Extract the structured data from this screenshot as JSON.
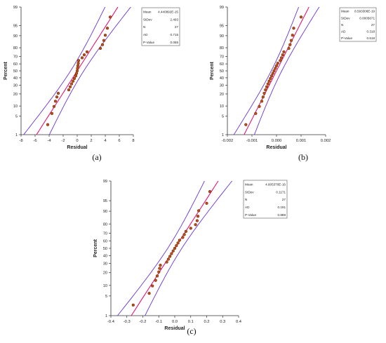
{
  "figure": {
    "panel_labels": [
      "(a)",
      "(b)",
      "(c)"
    ]
  },
  "chart_data": [
    {
      "type": "scatter",
      "panel": "(a)",
      "xlabel": "Residual",
      "ylabel": "Percent",
      "xlim": [
        -8,
        8
      ],
      "xticks": [
        "-8",
        "-6",
        "-4",
        "-2",
        "0",
        "2",
        "4",
        "6",
        "8"
      ],
      "ylim_percent": [
        1,
        99
      ],
      "yticks": [
        "1",
        "5",
        "10",
        "20",
        "30",
        "40",
        "50",
        "60",
        "70",
        "80",
        "90",
        "95",
        "99"
      ],
      "stats": {
        "labels": [
          "Mean",
          "StDev",
          "N",
          "AD",
          "P-Value"
        ],
        "values": [
          "4.440892E-15",
          "2.493",
          "27",
          "0.715",
          "0.055"
        ]
      },
      "points": [
        {
          "x": -4.2,
          "y": 2.5
        },
        {
          "x": -3.6,
          "y": 6
        },
        {
          "x": -3.3,
          "y": 9.7
        },
        {
          "x": -3.1,
          "y": 13.4
        },
        {
          "x": -2.9,
          "y": 17
        },
        {
          "x": -2.7,
          "y": 20.7
        },
        {
          "x": -1.2,
          "y": 24.4
        },
        {
          "x": -1.0,
          "y": 28
        },
        {
          "x": -0.8,
          "y": 31.7
        },
        {
          "x": -0.6,
          "y": 35.4
        },
        {
          "x": -0.4,
          "y": 39
        },
        {
          "x": -0.2,
          "y": 42.7
        },
        {
          "x": -0.1,
          "y": 46.3
        },
        {
          "x": 0.0,
          "y": 50
        },
        {
          "x": 0.05,
          "y": 53.7
        },
        {
          "x": 0.1,
          "y": 57.3
        },
        {
          "x": 0.15,
          "y": 61
        },
        {
          "x": 0.2,
          "y": 64.6
        },
        {
          "x": 0.7,
          "y": 68.3
        },
        {
          "x": 1.0,
          "y": 72
        },
        {
          "x": 1.4,
          "y": 75.6
        },
        {
          "x": 3.3,
          "y": 79.3
        },
        {
          "x": 3.6,
          "y": 83
        },
        {
          "x": 3.8,
          "y": 86.6
        },
        {
          "x": 4.0,
          "y": 90.3
        },
        {
          "x": 4.3,
          "y": 94
        },
        {
          "x": 4.7,
          "y": 97.5
        }
      ]
    },
    {
      "type": "scatter",
      "panel": "(b)",
      "xlabel": "Residual",
      "ylabel": "Percent",
      "xlim": [
        -0.002,
        0.002
      ],
      "xticks": [
        "-0.002",
        "-0.001",
        "0.000",
        "0.001",
        "0.002"
      ],
      "ylim_percent": [
        1,
        99
      ],
      "yticks": [
        "1",
        "5",
        "10",
        "20",
        "30",
        "40",
        "50",
        "60",
        "70",
        "80",
        "90",
        "95",
        "99"
      ],
      "stats": {
        "labels": [
          "Mean",
          "StDev",
          "N",
          "AD",
          "P-Value"
        ],
        "values": [
          "8.593306E-19",
          "0.0005671",
          "27",
          "0.318",
          "0.518"
        ]
      },
      "points": [
        {
          "x": -0.00125,
          "y": 2.5
        },
        {
          "x": -0.00085,
          "y": 6
        },
        {
          "x": -0.0007,
          "y": 9.7
        },
        {
          "x": -0.0006,
          "y": 13.4
        },
        {
          "x": -0.00055,
          "y": 17
        },
        {
          "x": -0.0005,
          "y": 20.7
        },
        {
          "x": -0.00045,
          "y": 24.4
        },
        {
          "x": -0.0004,
          "y": 28
        },
        {
          "x": -0.00035,
          "y": 31.7
        },
        {
          "x": -0.0003,
          "y": 35.4
        },
        {
          "x": -0.00025,
          "y": 39
        },
        {
          "x": -0.0002,
          "y": 42.7
        },
        {
          "x": -0.00015,
          "y": 46.3
        },
        {
          "x": -0.0001,
          "y": 50
        },
        {
          "x": -5e-05,
          "y": 53.7
        },
        {
          "x": 0.0,
          "y": 57.3
        },
        {
          "x": 5e-05,
          "y": 61
        },
        {
          "x": 0.00015,
          "y": 64.6
        },
        {
          "x": 0.0002,
          "y": 68.3
        },
        {
          "x": 0.00025,
          "y": 72
        },
        {
          "x": 0.0003,
          "y": 75.6
        },
        {
          "x": 0.0005,
          "y": 79.3
        },
        {
          "x": 0.00055,
          "y": 83
        },
        {
          "x": 0.0006,
          "y": 86.6
        },
        {
          "x": 0.00065,
          "y": 90.3
        },
        {
          "x": 0.0007,
          "y": 94
        },
        {
          "x": 0.001,
          "y": 97.5
        }
      ]
    },
    {
      "type": "scatter",
      "panel": "(c)",
      "xlabel": "Residual",
      "ylabel": "Percent",
      "xlim": [
        -0.4,
        0.4
      ],
      "xticks": [
        "-0.4",
        "-0.3",
        "-0.2",
        "-0.1",
        "0.0",
        "0.1",
        "0.2",
        "0.3",
        "0.4"
      ],
      "ylim_percent": [
        1,
        99
      ],
      "yticks": [
        "1",
        "5",
        "10",
        "20",
        "30",
        "40",
        "50",
        "60",
        "70",
        "80",
        "90",
        "95",
        "99"
      ],
      "stats": {
        "labels": [
          "Mean",
          "StDev",
          "N",
          "AD",
          "P-Value"
        ],
        "values": [
          "4.605370E-16",
          "0.1171",
          "27",
          "0.191",
          "0.889"
        ]
      },
      "points": [
        {
          "x": -0.26,
          "y": 2.5
        },
        {
          "x": -0.16,
          "y": 6
        },
        {
          "x": -0.14,
          "y": 9.7
        },
        {
          "x": -0.12,
          "y": 13.4
        },
        {
          "x": -0.11,
          "y": 17
        },
        {
          "x": -0.1,
          "y": 20.7
        },
        {
          "x": -0.095,
          "y": 24.4
        },
        {
          "x": -0.09,
          "y": 28
        },
        {
          "x": -0.05,
          "y": 31.7
        },
        {
          "x": -0.04,
          "y": 35.4
        },
        {
          "x": -0.03,
          "y": 39
        },
        {
          "x": -0.02,
          "y": 42.7
        },
        {
          "x": -0.01,
          "y": 46.3
        },
        {
          "x": 0.0,
          "y": 50
        },
        {
          "x": 0.01,
          "y": 53.7
        },
        {
          "x": 0.02,
          "y": 57.3
        },
        {
          "x": 0.03,
          "y": 61
        },
        {
          "x": 0.05,
          "y": 64.6
        },
        {
          "x": 0.06,
          "y": 68.3
        },
        {
          "x": 0.07,
          "y": 72
        },
        {
          "x": 0.1,
          "y": 75.6
        },
        {
          "x": 0.13,
          "y": 79.3
        },
        {
          "x": 0.14,
          "y": 83
        },
        {
          "x": 0.145,
          "y": 86.6
        },
        {
          "x": 0.15,
          "y": 90.3
        },
        {
          "x": 0.2,
          "y": 94
        },
        {
          "x": 0.22,
          "y": 97.5
        }
      ]
    }
  ],
  "colors": {
    "fit_line": "#e8006e",
    "ci_band": "#6a33d6",
    "point_fill": "#c24a18",
    "point_edge": "#5a2a00",
    "axis": "#333333"
  }
}
